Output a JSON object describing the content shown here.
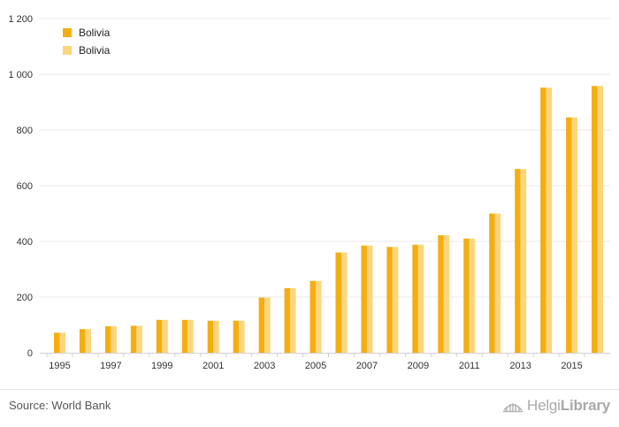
{
  "chart_data": {
    "type": "bar",
    "categories": [
      "1995",
      "1996",
      "1997",
      "1998",
      "1999",
      "2000",
      "2001",
      "2002",
      "2003",
      "2004",
      "2005",
      "2006",
      "2007",
      "2008",
      "2009",
      "2010",
      "2011",
      "2012",
      "2013",
      "2014",
      "2015",
      "2016"
    ],
    "x_tick_labels": [
      "1995",
      "1997",
      "1999",
      "2001",
      "2003",
      "2005",
      "2007",
      "2009",
      "2011",
      "2013",
      "2015"
    ],
    "series": [
      {
        "name": "Bolivia",
        "color": "#f5ae0f",
        "values": [
          72,
          85,
          95,
          97,
          118,
          118,
          115,
          115,
          198,
          232,
          258,
          360,
          385,
          380,
          388,
          422,
          410,
          500,
          660,
          952,
          845,
          958
        ]
      },
      {
        "name": "Bolivia",
        "color": "#fbd67e",
        "values": [
          72,
          85,
          95,
          97,
          118,
          118,
          115,
          115,
          198,
          232,
          258,
          360,
          385,
          380,
          388,
          422,
          410,
          500,
          660,
          952,
          845,
          958
        ]
      }
    ],
    "y_ticks": [
      0,
      200,
      400,
      600,
      800,
      1000,
      1200
    ],
    "y_tick_labels": [
      "0",
      "200",
      "400",
      "600",
      "800",
      "1 000",
      "1 200"
    ],
    "ylim": [
      0,
      1200
    ],
    "grid": true,
    "legend": "top-left",
    "title": "",
    "xlabel": "",
    "ylabel": ""
  },
  "footer": {
    "source": "Source: World Bank",
    "brand_regular": "Helgi",
    "brand_bold": "Library",
    "brand_icon": "bridge-logo-icon"
  }
}
